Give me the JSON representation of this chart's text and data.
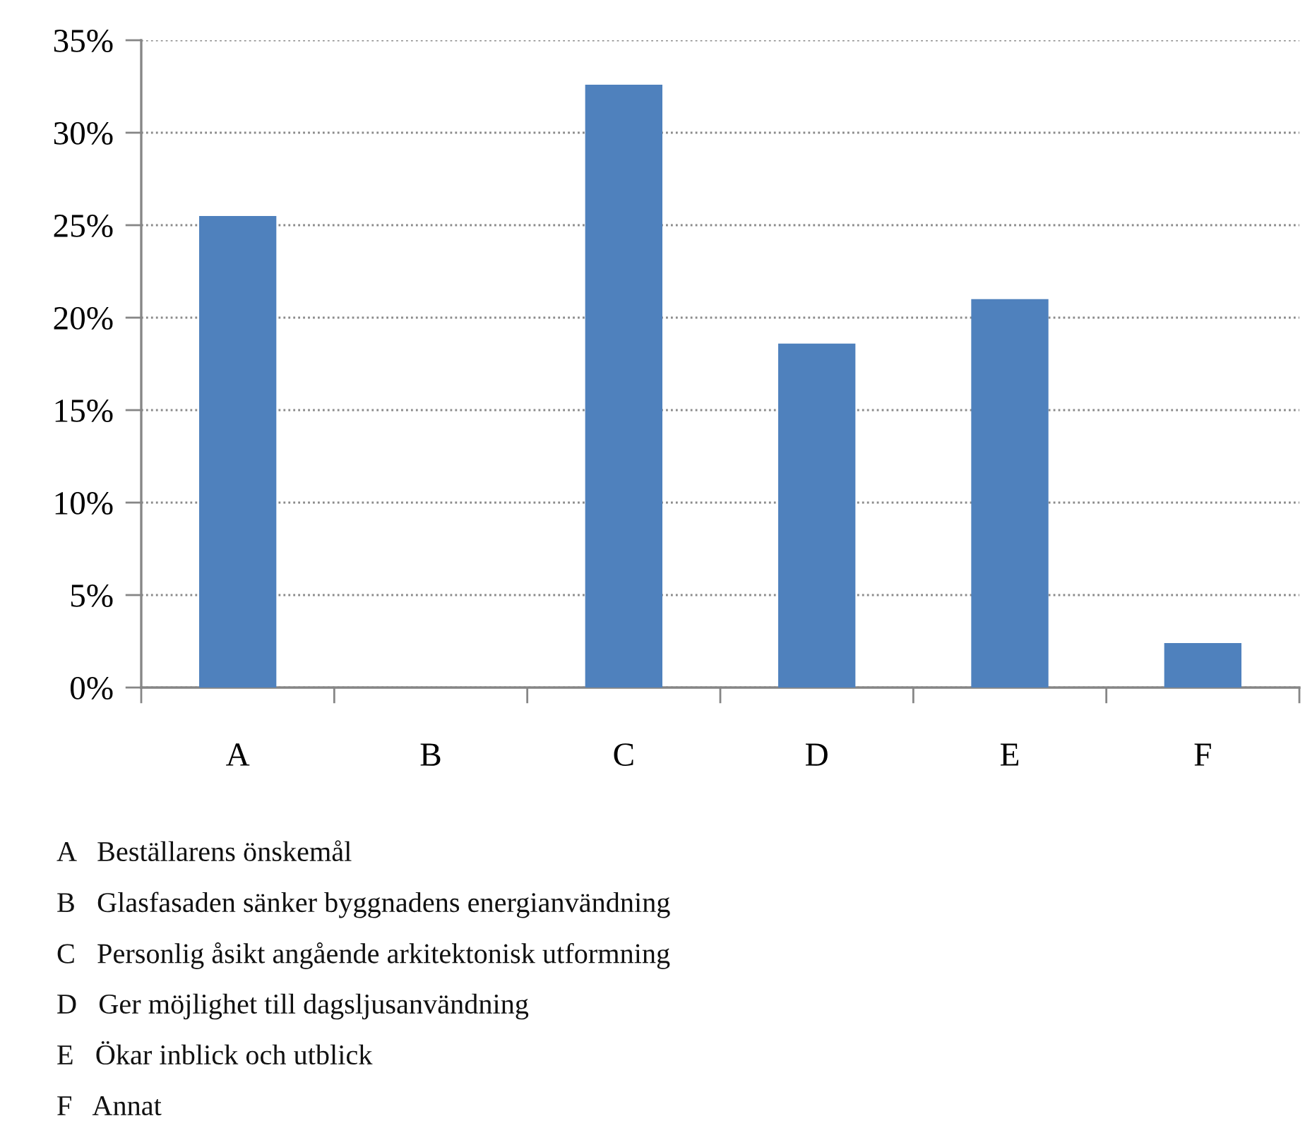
{
  "chart_data": {
    "type": "bar",
    "categories": [
      "A",
      "B",
      "C",
      "D",
      "E",
      "F"
    ],
    "values": [
      25.5,
      0,
      32.6,
      18.6,
      21.0,
      2.4
    ],
    "color": "#4f81bd",
    "ylim": [
      0,
      35
    ],
    "yticks": [
      {
        "value": 0,
        "label": "0%"
      },
      {
        "value": 5,
        "label": "5%"
      },
      {
        "value": 10,
        "label": "10%"
      },
      {
        "value": 15,
        "label": "15%"
      },
      {
        "value": 20,
        "label": "20%"
      },
      {
        "value": 25,
        "label": "25%"
      },
      {
        "value": 30,
        "label": "30%"
      },
      {
        "value": 35,
        "label": "35%"
      }
    ],
    "grid": "y",
    "annotations": [
      "A   Beställarens önskemål",
      "B   Glasfasaden sänker byggnadens energianvändning",
      "C   Personlig åsikt angående arkitektonisk utformning",
      "D   Ger möjlighet till dagsljusanvändning",
      "E   Ökar inblick och utblick",
      "F   Annat"
    ]
  }
}
